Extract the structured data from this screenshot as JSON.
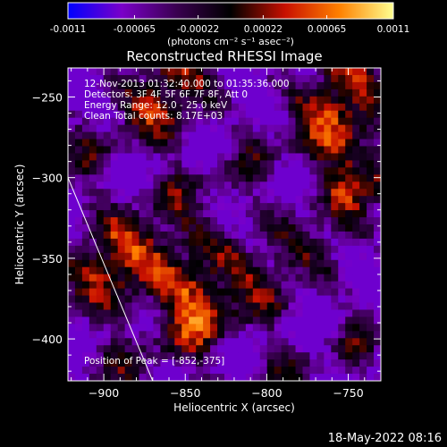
{
  "colorbar": {
    "tick_labels": [
      "-0.0011",
      "-0.00065",
      "-0.00022",
      "0.00022",
      "0.00065",
      "0.0011"
    ],
    "tick_values": [
      -0.0011,
      -0.00065,
      -0.00022,
      0.00022,
      0.00065,
      0.0011
    ],
    "range": [
      -0.0011,
      0.0011
    ],
    "units_label": "(photons cm⁻² s⁻¹ asec⁻²)",
    "colormap": [
      "#0000ff",
      "#7a00c8",
      "#3a0050",
      "#000000",
      "#c81000",
      "#ff8000",
      "#ffff90"
    ]
  },
  "chart_data": {
    "type": "heatmap",
    "title": "Reconstructed RHESSI Image",
    "xlabel": "Heliocentric X (arcsec)",
    "ylabel": "Heliocentric Y (arcsec)",
    "xlim": [
      -922,
      -730
    ],
    "ylim": [
      -426,
      -232
    ],
    "x_ticks": [
      -900,
      -850,
      -800,
      -750
    ],
    "x_tick_labels": [
      "−900",
      "−850",
      "−800",
      "−750"
    ],
    "y_ticks": [
      -250,
      -300,
      -350,
      -400
    ],
    "y_tick_labels": [
      "−250",
      "−300",
      "−350",
      "−400"
    ],
    "peak": {
      "x": -852,
      "y": -375
    },
    "limb_line": [
      [
        -922,
        -300
      ],
      [
        -870,
        -426
      ]
    ],
    "hot_spots": [
      {
        "x": -848,
        "y": -375,
        "level": 1.0
      },
      {
        "x": -742,
        "y": -290,
        "level": 0.85
      },
      {
        "x": -890,
        "y": -350,
        "level": 0.6
      },
      {
        "x": -830,
        "y": -345,
        "level": 0.55
      },
      {
        "x": -760,
        "y": -250,
        "level": 0.5
      },
      {
        "x": -865,
        "y": -252,
        "level": 0.45
      }
    ],
    "annotations": {
      "time": "12-Nov-2013 01:32:40.000 to 01:35:36.000",
      "detectors": "Detectors: 3F 4F 5F 6F 7F 8F, Att 0",
      "energy": "Energy Range: 12.0 - 25.0 keV",
      "clean": "Clean     Total counts: 8.17E+03",
      "peak_label": "Position of Peak = [-852,-375]"
    }
  },
  "footer": {
    "timestamp": "18-May-2022 08:16"
  }
}
